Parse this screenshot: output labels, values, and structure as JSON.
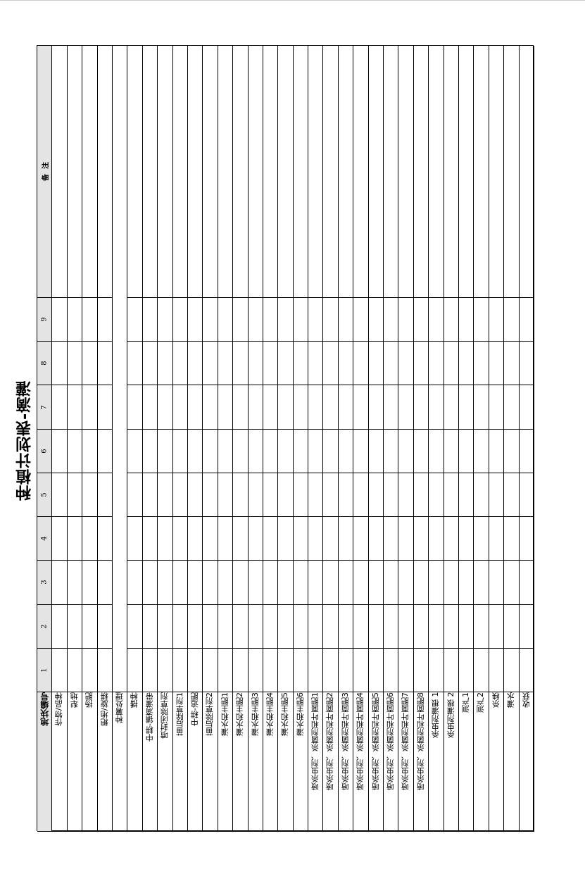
{
  "title": "种植计划表-滴灌",
  "header_label": "地块编号",
  "plot_numbers": [
    "1",
    "2",
    "3",
    "4",
    "5",
    "6",
    "7",
    "8",
    "9"
  ],
  "remarks_label": "备  注",
  "operations": [
    "作物/品种",
    "犁地",
    "扬肥",
    "耙地/旋耕",
    "种薯处理",
    "播种",
    "中耕-铺滴灌带",
    "喷封闭除草剂",
    "苗后除草剂1",
    "中耕-追肥",
    "苗后除草剂2",
    "灌水和主肥1",
    "灌水和主肥2",
    "灌水和主肥3",
    "灌水和主肥4",
    "灌水和主肥5",
    "灌水和主肥6",
    "喷杀虫剂、杀菌剂和叶面肥1",
    "喷杀虫剂、杀菌剂和叶面肥2",
    "喷杀虫剂、杀菌剂和叶面肥3",
    "喷杀虫剂、杀菌剂和叶面肥4",
    "喷杀虫剂、杀菌剂和叶面肥5",
    "喷杀虫剂、杀菌剂和叶面肥6",
    "喷杀虫剂、杀菌剂和叶面肥7",
    "喷杀虫剂、杀菌剂和叶面肥8",
    "杀虫剂灌根 1",
    "杀虫剂灌根 2",
    "测产1",
    "测产2",
    "杀秧",
    "灌水",
    "收获"
  ],
  "colors": {
    "header_fill": "#e4e4e4",
    "grid": "#000000"
  }
}
